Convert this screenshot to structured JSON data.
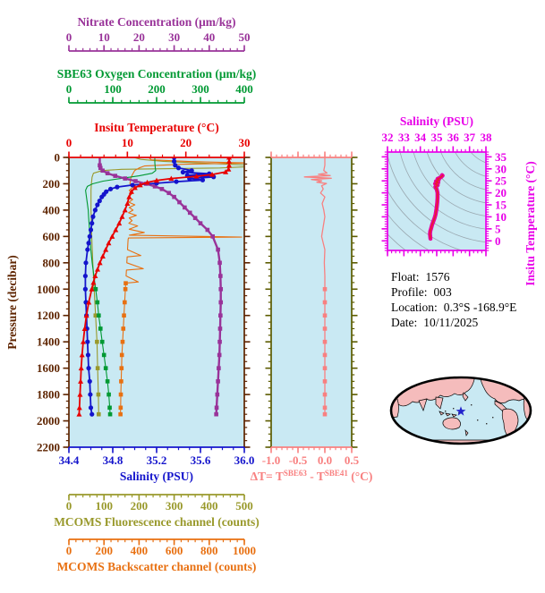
{
  "float_info": {
    "float_label": "Float:",
    "float_value": "1576",
    "profile_label": "Profile:",
    "profile_value": "003",
    "location_label": "Location:",
    "location_value": "0.3°S -168.9°E",
    "date_label": "Date:",
    "date_value": "10/11/2025"
  },
  "colors": {
    "nitrate": "#993399",
    "oxygen": "#009933",
    "temperature": "#E80000",
    "pressure": "#5E2400",
    "salinity": "#1414CC",
    "fluorescence": "#99992B",
    "backscatter": "#E87011",
    "delta_t": "#F88080",
    "delta_t_side_axis": "#5C5C00",
    "ts_magenta": "#E800E8",
    "ts_curve": "#E8009C",
    "ts_curve_core": "#E82222",
    "plot_bg": "#C9E9F3",
    "contour": "#9AA8B0",
    "map_land": "#F5BCBC",
    "map_ocean": "#C9E9F3",
    "map_outline": "#000000",
    "star": "#2222CC",
    "info_text": "#000000"
  },
  "chart_data": [
    {
      "type": "line",
      "title": "Float profile plot: property vs pressure",
      "plot_bg": "#C9E9F3",
      "y_axis": {
        "id": "pressure",
        "label": "Pressure (decibar)",
        "min": 0,
        "max": 2200,
        "ticks": [
          0,
          200,
          400,
          600,
          800,
          1000,
          1200,
          1400,
          1600,
          1800,
          2000,
          2200
        ],
        "tick_labels": [
          "0",
          "200",
          "400",
          "600",
          "800",
          "1000",
          "1200",
          "1400",
          "1600",
          "1800",
          "2000",
          "2200"
        ],
        "minor_step": 50,
        "color": "#5E2400"
      },
      "x_axes": [
        {
          "id": "nitrate",
          "label": "Nitrate Concentration (μm/kg)",
          "min": 0,
          "max": 50,
          "ticks": [
            0,
            10,
            20,
            30,
            40,
            50
          ],
          "tick_labels": [
            "0",
            "10",
            "20",
            "30",
            "40",
            "50"
          ],
          "minor_step": 2,
          "color": "#993399"
        },
        {
          "id": "oxygen",
          "label": "SBE63 Oxygen Concentration (μm/kg)",
          "min": 0,
          "max": 400,
          "ticks": [
            0,
            100,
            200,
            300,
            400
          ],
          "tick_labels": [
            "0",
            "100",
            "200",
            "300",
            "400"
          ],
          "minor_step": 20,
          "color": "#009933"
        },
        {
          "id": "temperature",
          "label": "Insitu Temperature (°C)",
          "min": 0,
          "max": 30,
          "ticks": [
            0,
            10,
            20,
            30
          ],
          "tick_labels": [
            "0",
            "10",
            "20",
            "30"
          ],
          "minor_step": 2,
          "color": "#E80000"
        },
        {
          "id": "salinity",
          "label": "Salinity (PSU)",
          "min": 34.4,
          "max": 36.0,
          "ticks": [
            34.4,
            34.8,
            35.2,
            35.6,
            36.0
          ],
          "tick_labels": [
            "34.4",
            "34.8",
            "35.2",
            "35.6",
            "36.0"
          ],
          "minor_step": 0.1,
          "color": "#1414CC"
        },
        {
          "id": "fluorescence",
          "label": "MCOMS Fluorescence channel (counts)",
          "min": 0,
          "max": 500,
          "ticks": [
            0,
            100,
            200,
            300,
            400,
            500
          ],
          "tick_labels": [
            "0",
            "100",
            "200",
            "300",
            "400",
            "500"
          ],
          "minor_step": 20,
          "color": "#99992B"
        },
        {
          "id": "backscatter",
          "label": "MCOMS Backscatter channel (counts)",
          "min": 0,
          "max": 1000,
          "ticks": [
            0,
            200,
            400,
            600,
            800,
            1000
          ],
          "tick_labels": [
            "0",
            "200",
            "400",
            "600",
            "800",
            "1000"
          ],
          "minor_step": 40,
          "color": "#E87011"
        }
      ],
      "series": [
        {
          "name": "Fluorescence",
          "axis": "fluorescence",
          "color": "#99992B",
          "marker": "square",
          "marker_min_p": 950,
          "width": 1.1,
          "pressure": [
            0,
            15,
            30,
            45,
            58,
            70,
            80,
            90,
            100,
            120,
            150,
            200,
            250,
            300,
            400,
            500,
            600,
            800,
            1000,
            1200,
            1400,
            1600,
            1800,
            1950
          ],
          "values": [
            185,
            205,
            270,
            390,
            515,
            515,
            430,
            150,
            95,
            70,
            66,
            64,
            63,
            63,
            63,
            64,
            65,
            68,
            72,
            76,
            80,
            82,
            84,
            85
          ]
        },
        {
          "name": "Backscatter",
          "axis": "backscatter",
          "color": "#E87011",
          "marker": "square",
          "marker_min_p": 950,
          "width": 1.1,
          "pressure": [
            0,
            18,
            32,
            42,
            52,
            65,
            80,
            100,
            130,
            160,
            200,
            225,
            250,
            275,
            300,
            320,
            340,
            360,
            380,
            400,
            420,
            440,
            460,
            480,
            500,
            520,
            545,
            570,
            590,
            605,
            612,
            620,
            650,
            700,
            745,
            755,
            800,
            845,
            855,
            900,
            945,
            955,
            1000,
            1100,
            1200,
            1300,
            1400,
            1500,
            1600,
            1700,
            1800,
            1900,
            1950
          ],
          "values": [
            455,
            470,
            700,
            1030,
            640,
            430,
            400,
            375,
            362,
            352,
            348,
            368,
            344,
            360,
            340,
            364,
            342,
            376,
            344,
            366,
            340,
            384,
            344,
            360,
            342,
            392,
            344,
            430,
            345,
            985,
            340,
            338,
            336,
            334,
            410,
            332,
            330,
            424,
            328,
            326,
            396,
            324,
            322,
            318,
            314,
            310,
            306,
            302,
            300,
            298,
            296,
            295,
            294
          ]
        },
        {
          "name": "SBE63 Oxygen",
          "axis": "oxygen",
          "color": "#009933",
          "marker": "square",
          "marker_min_p": 950,
          "width": 1.1,
          "pressure": [
            0,
            40,
            80,
            100,
            120,
            140,
            160,
            180,
            200,
            220,
            250,
            300,
            350,
            400,
            450,
            500,
            600,
            700,
            800,
            900,
            1000,
            1100,
            1200,
            1300,
            1400,
            1500,
            1600,
            1700,
            1800,
            1900,
            1950
          ],
          "values": [
            196,
            196,
            197,
            198,
            190,
            160,
            118,
            78,
            54,
            42,
            38,
            40,
            42,
            44,
            45,
            46,
            48,
            50,
            53,
            57,
            61,
            65,
            68,
            72,
            76,
            80,
            84,
            88,
            91,
            93,
            94
          ]
        },
        {
          "name": "Nitrate",
          "axis": "nitrate",
          "color": "#993399",
          "marker": "square",
          "marker_min_p": 60,
          "width": 2.4,
          "pressure": [
            0,
            30,
            60,
            80,
            100,
            120,
            140,
            160,
            180,
            200,
            220,
            240,
            270,
            300,
            340,
            380,
            420,
            460,
            500,
            550,
            600,
            700,
            800,
            900,
            1000,
            1100,
            1200,
            1300,
            1400,
            1500,
            1600,
            1700,
            1800,
            1900,
            1950
          ],
          "values": [
            8.8,
            8.8,
            8.8,
            9.0,
            9.6,
            11.0,
            13.2,
            16.0,
            19.0,
            22.0,
            24.5,
            26.5,
            28.5,
            30.0,
            31.5,
            33.0,
            34.5,
            36.0,
            37.5,
            39.5,
            41.0,
            42.5,
            43.0,
            43.2,
            43.3,
            43.3,
            43.2,
            43.1,
            43.0,
            42.9,
            42.7,
            42.5,
            42.3,
            42.1,
            42.0
          ]
        },
        {
          "name": "Salinity",
          "axis": "salinity",
          "color": "#1414CC",
          "marker": "circle",
          "marker_min_p": 0,
          "width": 1.8,
          "pressure": [
            0,
            30,
            60,
            80,
            100,
            112,
            124,
            136,
            148,
            160,
            172,
            184,
            196,
            210,
            225,
            240,
            260,
            280,
            300,
            330,
            360,
            400,
            450,
            500,
            550,
            600,
            650,
            700,
            800,
            900,
            1000,
            1100,
            1200,
            1300,
            1400,
            1500,
            1600,
            1700,
            1800,
            1900,
            1950
          ],
          "values": [
            35.36,
            35.36,
            35.37,
            35.4,
            35.52,
            35.44,
            35.68,
            35.48,
            35.72,
            35.5,
            35.62,
            35.38,
            35.2,
            34.98,
            34.84,
            34.78,
            34.74,
            34.72,
            34.7,
            34.68,
            34.66,
            34.64,
            34.62,
            34.61,
            34.6,
            34.59,
            34.58,
            34.57,
            34.555,
            34.55,
            34.55,
            34.555,
            34.56,
            34.565,
            34.57,
            34.575,
            34.58,
            34.59,
            34.595,
            34.6,
            34.61
          ]
        },
        {
          "name": "Insitu Temperature",
          "axis": "temperature",
          "color": "#E80000",
          "marker": "triangle",
          "marker_min_p": 0,
          "width": 1.8,
          "pressure": [
            0,
            30,
            60,
            90,
            110,
            130,
            143,
            160,
            175,
            190,
            210,
            230,
            260,
            300,
            350,
            400,
            450,
            500,
            550,
            600,
            650,
            700,
            750,
            800,
            850,
            900,
            950,
            1000,
            1100,
            1200,
            1300,
            1400,
            1500,
            1600,
            1700,
            1800,
            1900,
            1950
          ],
          "values": [
            27.4,
            27.4,
            27.4,
            27.3,
            26.8,
            24.5,
            21.8,
            17.5,
            15.0,
            13.4,
            12.2,
            11.3,
            10.7,
            10.3,
            10.0,
            9.6,
            9.1,
            8.6,
            8.0,
            7.4,
            6.8,
            6.3,
            5.8,
            5.3,
            4.9,
            4.5,
            4.2,
            3.9,
            3.4,
            3.0,
            2.7,
            2.45,
            2.25,
            2.1,
            2.0,
            1.9,
            1.8,
            1.75
          ]
        }
      ]
    },
    {
      "type": "line",
      "title": "Temperature difference panel",
      "plot_bg": "#C9E9F3",
      "x_axis": {
        "id": "delta_t",
        "min": -1.0,
        "max": 0.5,
        "ticks": [
          -1.0,
          -0.5,
          0.0,
          0.5
        ],
        "tick_labels": [
          "-1.0",
          "-0.5",
          "0.0",
          "0.5"
        ],
        "minor_step": 0.1,
        "color": "#F88080",
        "label_parts": {
          "prefix": "ΔT= T",
          "sup1": "SBE63",
          "mid": " - T",
          "sup2": "SBE41",
          "suffix": " (°C)"
        }
      },
      "y_axis": {
        "min": 0,
        "max": 2200,
        "minor_step": 50,
        "major_step": 200,
        "color": "#5C5C00"
      },
      "series": [
        {
          "name": "ΔT",
          "color": "#F88080",
          "marker": "square",
          "marker_min_p": 950,
          "width": 1.3,
          "pressure": [
            0,
            60,
            100,
            118,
            128,
            138,
            148,
            158,
            168,
            178,
            188,
            198,
            215,
            240,
            270,
            300,
            350,
            400,
            450,
            500,
            600,
            700,
            800,
            900,
            1000,
            1100,
            1200,
            1300,
            1400,
            1500,
            1600,
            1700,
            1800,
            1900,
            1950
          ],
          "values": [
            0.0,
            0.0,
            -0.02,
            0.04,
            -0.12,
            0.1,
            -0.38,
            0.12,
            -0.25,
            -0.06,
            -0.15,
            0.03,
            -0.06,
            -0.03,
            -0.08,
            0.0,
            -0.05,
            -0.02,
            0.0,
            -0.02,
            -0.06,
            0.0,
            -0.01,
            0.0,
            0.0,
            0.0,
            0.0,
            0.0,
            0.0,
            0.0,
            0.0,
            0.0,
            0.0,
            0.0,
            0.0
          ]
        }
      ]
    },
    {
      "type": "scatter",
      "title": "T-S diagram with density contours",
      "plot_bg": "#C9E9F3",
      "x_axis": {
        "id": "ts_salinity",
        "label": "Salinity (PSU)",
        "min": 32,
        "max": 38,
        "ticks": [
          32,
          33,
          34,
          35,
          36,
          37,
          38
        ],
        "tick_labels": [
          "32",
          "33",
          "34",
          "35",
          "36",
          "37",
          "38"
        ],
        "minor_step": 0.25,
        "color": "#E800E8"
      },
      "y_axis": {
        "id": "ts_temperature",
        "label": "Insitu Temperature (°C)",
        "min": -4,
        "max": 37,
        "ticks": [
          0,
          5,
          10,
          15,
          20,
          25,
          30,
          35
        ],
        "tick_labels": [
          "0",
          "5",
          "10",
          "15",
          "20",
          "25",
          "30",
          "35"
        ],
        "minor_step": 1,
        "color": "#E800E8"
      },
      "contours": true,
      "series": [
        {
          "name": "T-S profile",
          "color": "#E8009C",
          "core_color": "#E82222",
          "width": 4.5,
          "salinity": [
            34.62,
            34.6,
            34.59,
            34.61,
            34.65,
            34.71,
            34.79,
            34.87,
            34.93,
            34.97,
            35.0,
            35.03,
            35.05,
            35.05,
            35.0,
            34.92,
            35.06,
            34.9,
            35.1,
            34.95,
            35.12,
            35.05,
            35.18,
            35.3,
            35.36,
            35.33
          ],
          "temperature": [
            0.9,
            2,
            3,
            4,
            5,
            6.5,
            8,
            9.5,
            11,
            12.5,
            14,
            16,
            18,
            20,
            21.5,
            22.5,
            23.2,
            23.8,
            24.3,
            24.8,
            25.3,
            25.8,
            26.2,
            26.8,
            27.2,
            27.4
          ]
        }
      ]
    }
  ],
  "map": {
    "description": "Pacific-centered world map, elliptical outline",
    "land_color": "#F5BCBC",
    "ocean_color": "#C9E9F3",
    "outline_color": "#000000",
    "marker": {
      "symbol": "star",
      "color": "#2222CC"
    }
  }
}
